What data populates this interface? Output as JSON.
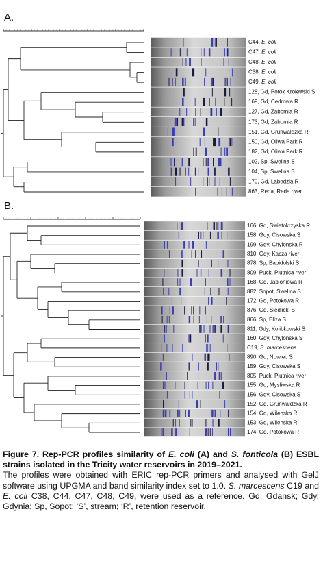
{
  "panel_a": {
    "label": "A.",
    "lanes": [
      [
        "C44, ",
        "E. coli"
      ],
      [
        "C47, ",
        "E. coli"
      ],
      [
        "C48, ",
        "E. coli"
      ],
      [
        "C38, ",
        "E. coli"
      ],
      [
        "C49, ",
        "E. coli"
      ],
      [
        "128, Gd, Potok Krolewski S"
      ],
      [
        "169, Gd, Cedrowa R"
      ],
      [
        "127, Gd, Zabornia R"
      ],
      [
        "173, Gd, Zabornia R"
      ],
      [
        "151, Gd, Grunwaldzka R"
      ],
      [
        "150, Gd, Oliwa Park R"
      ],
      [
        "182, Gd, Oliwa Park R"
      ],
      [
        "102, Sp, Swelina S"
      ],
      [
        "104, Sp, Swelina S"
      ],
      [
        "170, Gd, Labedzia R"
      ],
      [
        "863, Reda, Reda river"
      ]
    ]
  },
  "panel_b": {
    "label": "B.",
    "lanes": [
      [
        "166, Gd, Swietokrzyska R"
      ],
      [
        "158, Gdy, Cisowska S"
      ],
      [
        "199, Gdy, Chylonska R"
      ],
      [
        "810, Gdy, Kacza river"
      ],
      [
        "878, Sp, Babidolski S"
      ],
      [
        "809, Puck, Plutnica river"
      ],
      [
        "168, Gd, Jabloniowa R"
      ],
      [
        "882, Sopot, Swelina S"
      ],
      [
        "172, Gd, Potokowa R"
      ],
      [
        "876, Gd, Siedlicki S"
      ],
      [
        "866, Sp, Eliza S"
      ],
      [
        "811, Gdy, Kolibkowski S"
      ],
      [
        "160, Gdy, Chylonska S"
      ],
      [
        "C19, ",
        "S. marcescens"
      ],
      [
        "890, Gd, Nowiec S"
      ],
      [
        "159, Gdy, Cisowska S"
      ],
      [
        "805, Puck, Plutnica river"
      ],
      [
        "155, Gd, Mysliwska R"
      ],
      [
        "156, Gdy, Cisowska S"
      ],
      [
        "152, Gd, Grunwaldzka R"
      ],
      [
        "154, Gd, Wilenska R"
      ],
      [
        "153, Gd, Wilenska R"
      ],
      [
        "174, Gd, Potokowa R"
      ]
    ]
  },
  "caption": {
    "title": [
      "Figure 7. Rep-PCR profiles similarity of ",
      "E. coli",
      " (A) and ",
      "S. fonticola",
      " (B) ESBL strains isolated in the Tricity water reservoirs in 2019–2021."
    ],
    "body": [
      "The profiles were obtained with ERIC rep-PCR primers and analysed with GelJ software using UPGMA and band similarity index set to 1.0. ",
      "S. marcescens",
      " C19 and ",
      "E. coli",
      " C38, C44, C47, C48, C49, were used as a reference. Gd, Gdansk; Gdy, Gdynia; Sp, Sopot; ‘S’, stream; ‘R’, retention reservoir."
    ]
  }
}
